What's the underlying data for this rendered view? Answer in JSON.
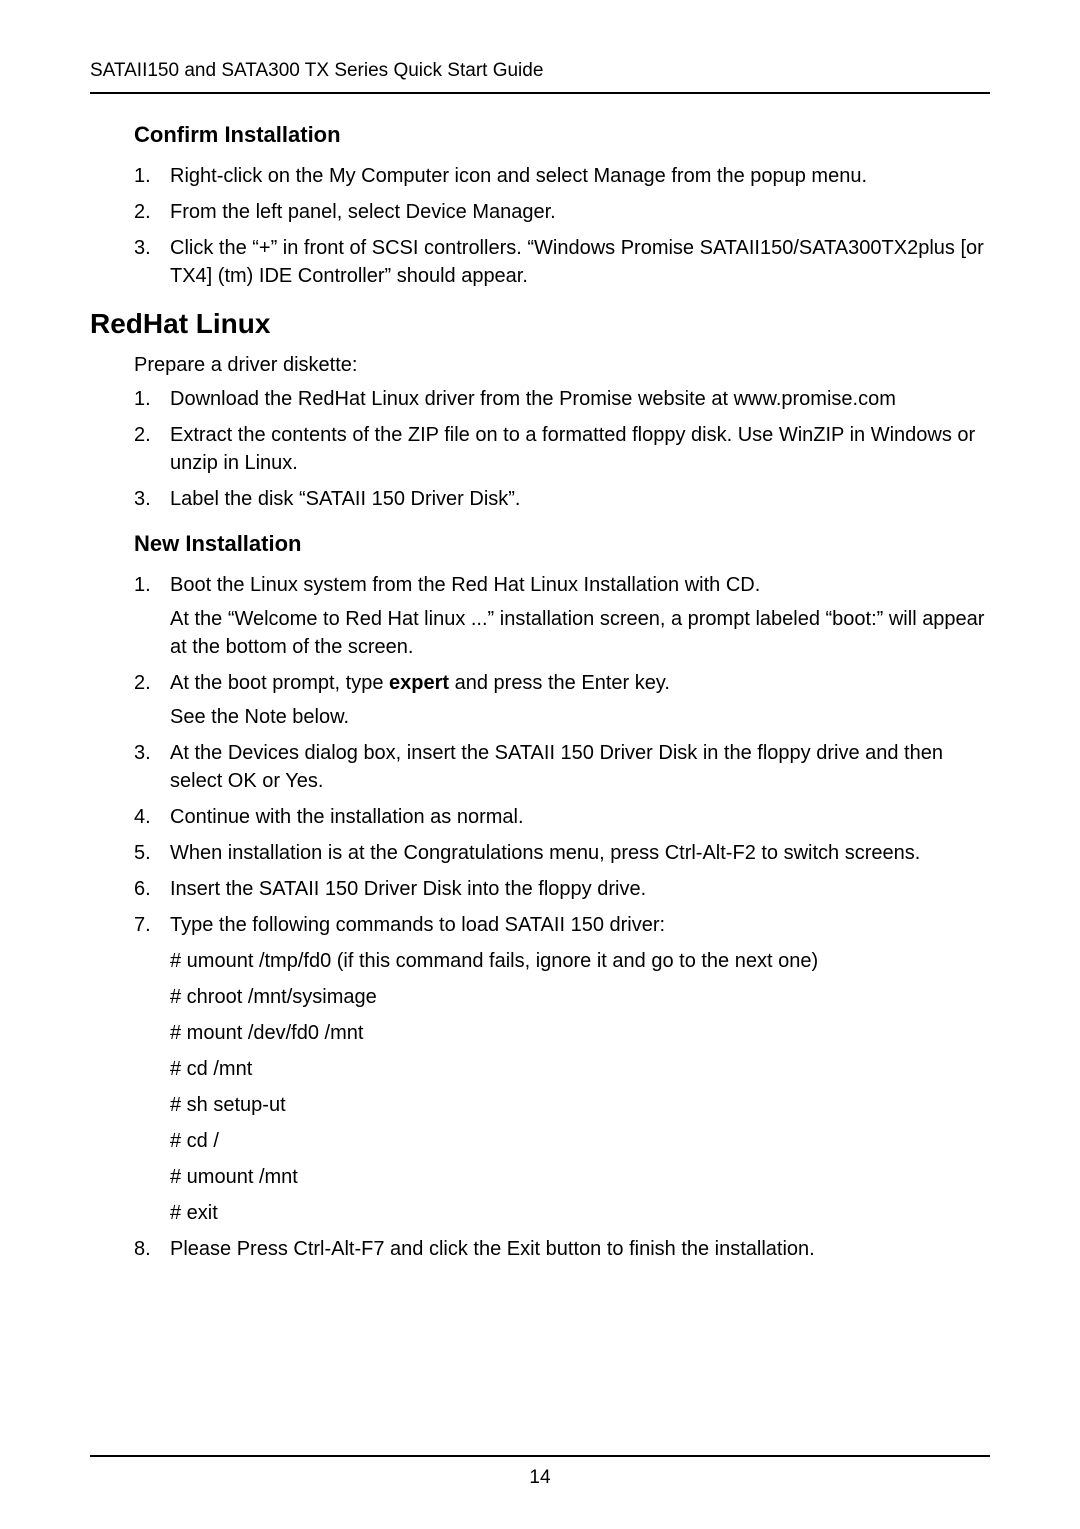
{
  "header": "SATAII150 and SATA300 TX Series  Quick Start Guide",
  "confirm": {
    "title": "Confirm Installation",
    "items": [
      "Right-click on the My Computer icon and select Manage from the popup menu.",
      "From the left panel, select Device Manager.",
      "Click the “+” in front of SCSI controllers. “Windows Promise SATAII150/SATA300TX2plus [or TX4] (tm) IDE Controller” should appear."
    ]
  },
  "redhat": {
    "title": "RedHat Linux",
    "intro": "Prepare a driver diskette:",
    "prepare": [
      "Download the RedHat Linux driver from the Promise website at www.promise.com",
      "Extract the contents of the ZIP file on to a formatted floppy disk. Use WinZIP in Windows or unzip in Linux.",
      "Label the disk “SATAII 150 Driver Disk”."
    ]
  },
  "newinstall": {
    "title": "New Installation",
    "items": {
      "i1": {
        "text": "Boot the Linux system from the Red Hat Linux Installation with CD.",
        "sub": "At the “Welcome to Red Hat linux ...” installation screen, a prompt labeled “boot:” will appear at the bottom of the screen."
      },
      "i2": {
        "pre": "At the boot prompt, type ",
        "bold": "expert",
        "post": " and press the Enter key.",
        "sub": " See the Note below."
      },
      "i3": "At the Devices dialog box, insert the SATAII 150 Driver Disk in the floppy drive and then select OK or Yes.",
      "i4": "Continue with the installation as normal.",
      "i5": "When installation is at the Congratulations menu, press Ctrl-Alt-F2 to switch screens.",
      "i6": "Insert the SATAII 150 Driver Disk into the floppy drive.",
      "i7": {
        "text": "Type the following commands to load SATAII 150 driver:",
        "cmds": [
          "# umount /tmp/fd0 (if this command fails, ignore it and go to the next one)",
          "# chroot /mnt/sysimage",
          "# mount /dev/fd0 /mnt",
          "# cd /mnt",
          "# sh setup-ut",
          "# cd /",
          "# umount /mnt",
          "# exit"
        ]
      },
      "i8": "Please Press Ctrl-Alt-F7 and click the Exit button to finish the installation."
    }
  },
  "pagenum": "14"
}
